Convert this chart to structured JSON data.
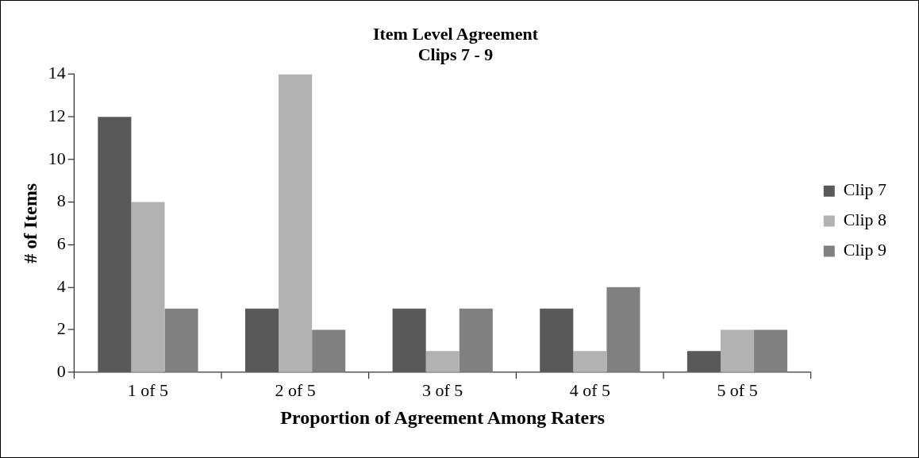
{
  "chart_data": {
    "type": "bar",
    "title": "Item Level Agreement",
    "subtitle": "Clips 7 - 9",
    "xlabel": "Proportion of Agreement Among Raters",
    "ylabel": "# of Items",
    "categories": [
      "1 of 5",
      "2 of 5",
      "3 of 5",
      "4 of 5",
      "5 of 5"
    ],
    "series": [
      {
        "name": "Clip 7",
        "color": "#595959",
        "values": [
          12,
          3,
          3,
          3,
          1
        ]
      },
      {
        "name": "Clip 8",
        "color": "#b2b2b2",
        "values": [
          8,
          14,
          1,
          1,
          2
        ]
      },
      {
        "name": "Clip 9",
        "color": "#808080",
        "values": [
          3,
          2,
          3,
          4,
          2
        ]
      }
    ],
    "ylim": [
      0,
      14
    ],
    "yticks": [
      0,
      2,
      4,
      6,
      8,
      10,
      12,
      14
    ],
    "legend": "right"
  }
}
